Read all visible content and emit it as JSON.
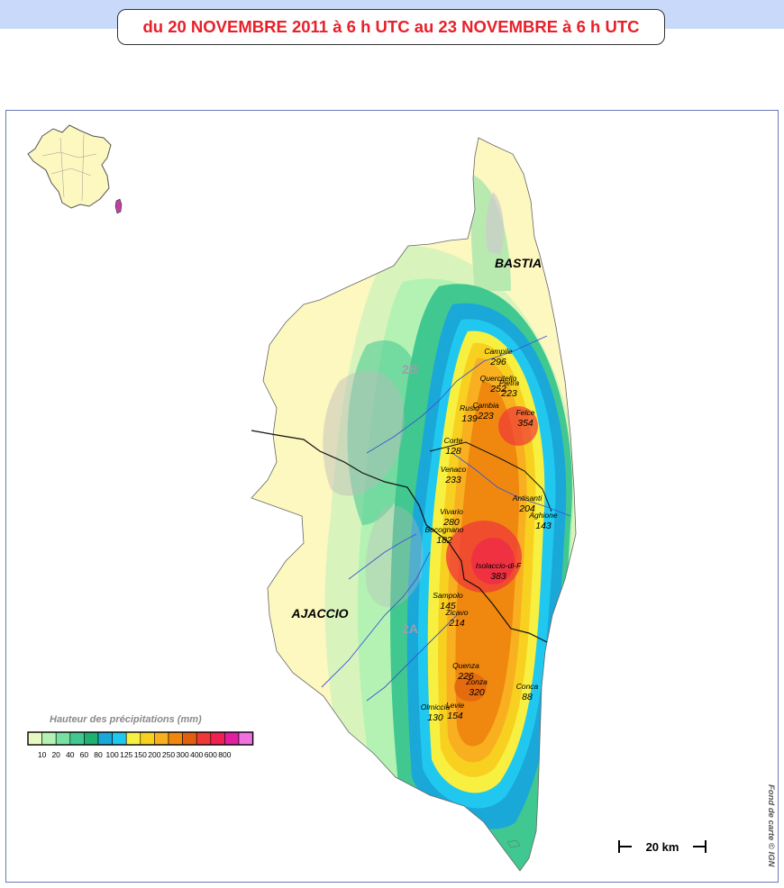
{
  "title": "du 20 NOVEMBRE 2011 à 6 h UTC au 23 NOVEMBRE à 6 h UTC",
  "cities": {
    "bastia": "BASTIA",
    "ajaccio": "AJACCIO"
  },
  "departments": {
    "north": "2B",
    "south": "2A"
  },
  "stations": [
    {
      "name": "Campile",
      "value": "296"
    },
    {
      "name": "Quercitello",
      "value": "252"
    },
    {
      "name": "Pietra",
      "value": "223"
    },
    {
      "name": "Cambia",
      "value": "223"
    },
    {
      "name": "Rusio",
      "value": "139"
    },
    {
      "name": "Felce",
      "value": "354"
    },
    {
      "name": "Corte",
      "value": "128"
    },
    {
      "name": "Venaco",
      "value": "233"
    },
    {
      "name": "Antisanti",
      "value": "204"
    },
    {
      "name": "Aghione",
      "value": "143"
    },
    {
      "name": "Vivario",
      "value": "280"
    },
    {
      "name": "Bocognano",
      "value": "182"
    },
    {
      "name": "Isolaccio-di-F",
      "value": "383"
    },
    {
      "name": "Sampolo",
      "value": "145"
    },
    {
      "name": "Zicavo",
      "value": "214"
    },
    {
      "name": "Quenza",
      "value": "226"
    },
    {
      "name": "Zonza",
      "value": "320"
    },
    {
      "name": "Conca",
      "value": "88"
    },
    {
      "name": "Olmiccia",
      "value": "130"
    },
    {
      "name": "Levie",
      "value": "154"
    }
  ],
  "legend": {
    "title": "Hauteur des précipitations (mm)",
    "colors": [
      "#e8f9c0",
      "#b4f2b4",
      "#78e0a0",
      "#40c890",
      "#20b070",
      "#1aa8d8",
      "#20c8f0",
      "#f8f040",
      "#f8d020",
      "#f8b020",
      "#f08810",
      "#e06010",
      "#f03838",
      "#f02050",
      "#e020a0",
      "#f070e0"
    ],
    "labels": [
      "10",
      "20",
      "40",
      "60",
      "80",
      "100",
      "125",
      "150",
      "200",
      "250",
      "300",
      "400",
      "600",
      "800"
    ]
  },
  "scale": {
    "label": "20 km"
  },
  "credit": "Fond de carte © IGN"
}
